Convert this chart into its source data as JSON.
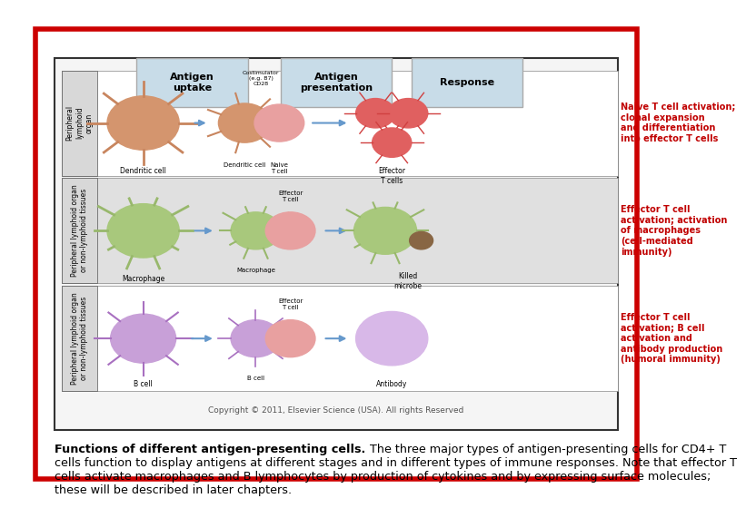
{
  "background_color": "#ffffff",
  "outer_border_color": "#cc0000",
  "outer_border_lw": 4,
  "inner_border_color": "#333333",
  "inner_border_lw": 1.5,
  "caption_bold": "Functions of different antigen-presenting cells.",
  "caption_normal": " The three major types of antigen-presenting cells for CD4+ T cells function to display antigens at different stages and in different types of immune responses. Note that effector T cells activate macrophages and B lymphocytes by production of cytokines and by expressing surface molecules; these will be described in later chapters.",
  "caption_fontsize": 9.2,
  "header_labels": [
    "Antigen\nuptake",
    "Antigen\npresentation",
    "Response"
  ],
  "header_bg": "#c8dce8",
  "header_fontsize": 8,
  "response_texts": [
    "Naive T cell activation;\nclonal expansion\nand differentiation\ninto effector T cells",
    "Effector T cell\nactivation; activation\nof macrophages\n(cell-mediated\nimmunity)",
    "Effector T cell\nactivation; B cell\nactivation and\nantibody production\n(humoral immunity)"
  ],
  "response_color": "#c00000",
  "copyright_text": "Copyright © 2011, Elsevier Science (USA). All rights Reserved",
  "copyright_fontsize": 6.5,
  "caption_line2": "cells function to display antigens at different stages and in different types of immune responses. Note that effector T",
  "caption_line3": "cells activate macrophages and B lymphocytes by production of cytokines and by expressing surface molecules;",
  "caption_line4": "these will be described in later chapters."
}
